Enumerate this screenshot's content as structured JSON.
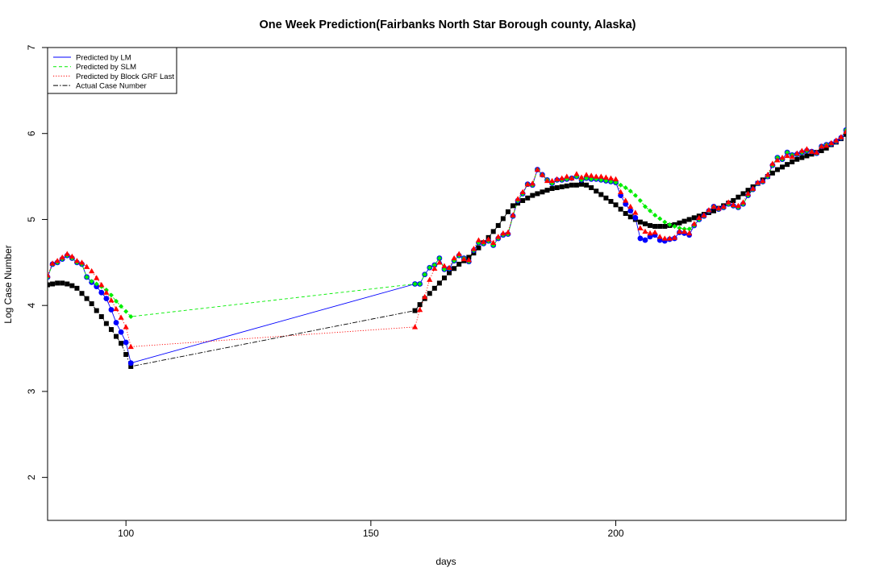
{
  "chart_data": {
    "type": "line",
    "title": "One Week Prediction(Fairbanks North Star Borough county, Alaska)",
    "xlabel": "days",
    "ylabel": "Log Case Number",
    "xlim": [
      84,
      247
    ],
    "ylim": [
      1.5,
      7
    ],
    "x_ticks": [
      "100",
      "150",
      "200"
    ],
    "y_ticks": [
      "2",
      "3",
      "4",
      "5",
      "6",
      "7"
    ],
    "grid": false,
    "legend_position": "top-left",
    "legend": [
      {
        "label": "Predicted by LM",
        "color": "#0000ff",
        "dash": "solid"
      },
      {
        "label": "Predicted by SLM",
        "color": "#00ee00",
        "dash": "dashed"
      },
      {
        "label": "Predicted by Block GRF Last",
        "color": "#ff0000",
        "dash": "dotted"
      },
      {
        "label": "Actual Case Number",
        "color": "#000000",
        "dash": "dashdot"
      }
    ],
    "series": [
      {
        "name": "Actual Case Number",
        "color": "#000000",
        "marker": "square",
        "x": [
          84,
          85,
          86,
          87,
          88,
          89,
          90,
          91,
          92,
          93,
          94,
          95,
          96,
          97,
          98,
          99,
          100,
          101,
          159,
          160,
          161,
          162,
          163,
          164,
          165,
          166,
          167,
          168,
          169,
          170,
          171,
          172,
          173,
          174,
          175,
          176,
          177,
          178,
          179,
          180,
          181,
          182,
          183,
          184,
          185,
          186,
          187,
          188,
          189,
          190,
          191,
          192,
          193,
          194,
          195,
          196,
          197,
          198,
          199,
          200,
          201,
          202,
          203,
          204,
          205,
          206,
          207,
          208,
          209,
          210,
          211,
          212,
          213,
          214,
          215,
          216,
          217,
          218,
          219,
          220,
          221,
          222,
          223,
          224,
          225,
          226,
          227,
          228,
          229,
          230,
          231,
          232,
          233,
          234,
          235,
          236,
          237,
          238,
          239,
          240,
          241,
          242,
          243,
          244,
          245,
          246,
          247
        ],
        "y": [
          4.24,
          4.25,
          4.26,
          4.26,
          4.25,
          4.23,
          4.2,
          4.14,
          4.08,
          4.02,
          3.94,
          3.87,
          3.79,
          3.72,
          3.64,
          3.56,
          3.43,
          3.29,
          3.94,
          4.01,
          4.08,
          4.14,
          4.2,
          4.26,
          4.32,
          4.38,
          4.43,
          4.48,
          4.52,
          4.56,
          4.61,
          4.67,
          4.73,
          4.79,
          4.86,
          4.93,
          5.01,
          5.09,
          5.16,
          5.19,
          5.22,
          5.25,
          5.28,
          5.3,
          5.32,
          5.34,
          5.36,
          5.37,
          5.38,
          5.39,
          5.4,
          5.4,
          5.41,
          5.4,
          5.37,
          5.33,
          5.29,
          5.25,
          5.21,
          5.17,
          5.12,
          5.07,
          5.03,
          5.0,
          4.97,
          4.95,
          4.93,
          4.92,
          4.92,
          4.92,
          4.93,
          4.94,
          4.96,
          4.98,
          5.0,
          5.02,
          5.04,
          5.06,
          5.08,
          5.1,
          5.13,
          5.16,
          5.19,
          5.22,
          5.26,
          5.3,
          5.34,
          5.38,
          5.42,
          5.46,
          5.5,
          5.54,
          5.58,
          5.61,
          5.64,
          5.67,
          5.7,
          5.72,
          5.74,
          5.76,
          5.78,
          5.8,
          5.83,
          5.87,
          5.9,
          5.94,
          5.99
        ]
      },
      {
        "name": "Predicted by LM",
        "color": "#0000ff",
        "marker": "circle",
        "x": [
          84,
          85,
          86,
          87,
          88,
          89,
          90,
          91,
          92,
          93,
          94,
          95,
          96,
          97,
          98,
          99,
          100,
          101,
          159,
          160,
          161,
          162,
          163,
          164,
          165,
          166,
          167,
          168,
          169,
          170,
          171,
          172,
          173,
          174,
          175,
          176,
          177,
          178,
          179,
          180,
          181,
          182,
          183,
          184,
          185,
          186,
          187,
          188,
          189,
          190,
          191,
          192,
          193,
          194,
          195,
          196,
          197,
          198,
          199,
          200,
          201,
          202,
          203,
          204,
          205,
          206,
          207,
          208,
          209,
          210,
          211,
          212,
          213,
          214,
          215,
          216,
          217,
          218,
          219,
          220,
          221,
          222,
          223,
          224,
          225,
          226,
          227,
          228,
          229,
          230,
          231,
          232,
          233,
          234,
          235,
          236,
          237,
          238,
          239,
          240,
          241,
          242,
          243,
          244,
          245,
          246,
          247
        ],
        "y": [
          4.33,
          4.48,
          4.5,
          4.54,
          4.58,
          4.55,
          4.5,
          4.48,
          4.33,
          4.27,
          4.22,
          4.15,
          4.08,
          3.95,
          3.8,
          3.69,
          3.57,
          3.33,
          4.25,
          4.25,
          4.36,
          4.44,
          4.47,
          4.55,
          4.42,
          4.43,
          4.52,
          4.58,
          4.55,
          4.51,
          4.64,
          4.73,
          4.72,
          4.75,
          4.7,
          4.78,
          4.82,
          4.83,
          5.04,
          5.22,
          5.3,
          5.41,
          5.4,
          5.58,
          5.52,
          5.46,
          5.42,
          5.46,
          5.46,
          5.47,
          5.48,
          5.5,
          5.46,
          5.48,
          5.47,
          5.47,
          5.46,
          5.45,
          5.44,
          5.43,
          5.28,
          5.18,
          5.1,
          5.02,
          4.78,
          4.76,
          4.8,
          4.82,
          4.76,
          4.75,
          4.77,
          4.78,
          4.85,
          4.84,
          4.82,
          4.93,
          5.0,
          5.04,
          5.1,
          5.15,
          5.12,
          5.14,
          5.18,
          5.16,
          5.14,
          5.18,
          5.28,
          5.35,
          5.42,
          5.44,
          5.5,
          5.63,
          5.72,
          5.7,
          5.78,
          5.75,
          5.76,
          5.78,
          5.8,
          5.79,
          5.77,
          5.85,
          5.87,
          5.88,
          5.91,
          5.95,
          6.04
        ]
      },
      {
        "name": "Predicted by SLM",
        "color": "#00ee00",
        "marker": "diamond",
        "x": [
          84,
          85,
          86,
          87,
          88,
          89,
          90,
          91,
          92,
          93,
          94,
          95,
          96,
          97,
          98,
          99,
          100,
          101,
          159,
          160,
          161,
          162,
          163,
          164,
          165,
          166,
          167,
          168,
          169,
          170,
          171,
          172,
          173,
          174,
          175,
          176,
          177,
          178,
          179,
          180,
          181,
          182,
          183,
          184,
          185,
          186,
          187,
          188,
          189,
          190,
          191,
          192,
          193,
          194,
          195,
          196,
          197,
          198,
          199,
          200,
          201,
          202,
          203,
          204,
          205,
          206,
          207,
          208,
          209,
          210,
          211,
          212,
          213,
          214,
          215,
          216,
          217,
          218,
          219,
          220,
          221,
          222,
          223,
          224,
          225,
          226,
          227,
          228,
          229,
          230,
          231,
          232,
          233,
          234,
          235,
          236,
          237,
          238,
          239,
          240,
          241,
          242,
          243,
          244,
          245,
          246,
          247
        ],
        "y": [
          4.33,
          4.48,
          4.5,
          4.54,
          4.58,
          4.55,
          4.5,
          4.48,
          4.33,
          4.28,
          4.25,
          4.22,
          4.18,
          4.12,
          4.05,
          3.99,
          3.93,
          3.87,
          4.25,
          4.25,
          4.36,
          4.44,
          4.47,
          4.55,
          4.42,
          4.43,
          4.52,
          4.58,
          4.55,
          4.51,
          4.64,
          4.73,
          4.72,
          4.75,
          4.7,
          4.78,
          4.82,
          4.83,
          5.04,
          5.22,
          5.3,
          5.41,
          5.4,
          5.58,
          5.52,
          5.46,
          5.42,
          5.46,
          5.46,
          5.47,
          5.48,
          5.5,
          5.46,
          5.48,
          5.47,
          5.47,
          5.46,
          5.45,
          5.44,
          5.43,
          5.4,
          5.37,
          5.33,
          5.28,
          5.22,
          5.15,
          5.1,
          5.05,
          5.01,
          4.97,
          4.94,
          4.92,
          4.9,
          4.89,
          4.89,
          4.93,
          5.0,
          5.04,
          5.1,
          5.15,
          5.12,
          5.14,
          5.18,
          5.16,
          5.14,
          5.18,
          5.28,
          5.35,
          5.42,
          5.44,
          5.5,
          5.63,
          5.72,
          5.7,
          5.78,
          5.75,
          5.76,
          5.78,
          5.8,
          5.79,
          5.77,
          5.85,
          5.87,
          5.88,
          5.91,
          5.95,
          6.04
        ]
      },
      {
        "name": "Predicted by Block GRF Last",
        "color": "#ff0000",
        "marker": "triangle",
        "x": [
          84,
          85,
          86,
          87,
          88,
          89,
          90,
          91,
          92,
          93,
          94,
          95,
          96,
          97,
          98,
          99,
          100,
          101,
          159,
          160,
          161,
          162,
          163,
          164,
          165,
          166,
          167,
          168,
          169,
          170,
          171,
          172,
          173,
          174,
          175,
          176,
          177,
          178,
          179,
          180,
          181,
          182,
          183,
          184,
          185,
          186,
          187,
          188,
          189,
          190,
          191,
          192,
          193,
          194,
          195,
          196,
          197,
          198,
          199,
          200,
          201,
          202,
          203,
          204,
          205,
          206,
          207,
          208,
          209,
          210,
          211,
          212,
          213,
          214,
          215,
          216,
          217,
          218,
          219,
          220,
          221,
          222,
          223,
          224,
          225,
          226,
          227,
          228,
          229,
          230,
          231,
          232,
          233,
          234,
          235,
          236,
          237,
          238,
          239,
          240,
          241,
          242,
          243,
          244,
          245,
          246,
          247
        ],
        "y": [
          4.35,
          4.49,
          4.52,
          4.56,
          4.6,
          4.57,
          4.52,
          4.5,
          4.45,
          4.4,
          4.32,
          4.24,
          4.15,
          4.06,
          3.96,
          3.86,
          3.75,
          3.52,
          3.75,
          3.95,
          4.1,
          4.3,
          4.43,
          4.5,
          4.46,
          4.44,
          4.55,
          4.6,
          4.54,
          4.53,
          4.66,
          4.76,
          4.74,
          4.77,
          4.73,
          4.8,
          4.84,
          4.85,
          5.05,
          5.24,
          5.32,
          5.41,
          5.42,
          5.58,
          5.52,
          5.45,
          5.45,
          5.47,
          5.48,
          5.5,
          5.48,
          5.53,
          5.49,
          5.52,
          5.51,
          5.5,
          5.5,
          5.49,
          5.48,
          5.47,
          5.32,
          5.22,
          5.15,
          5.08,
          4.9,
          4.86,
          4.84,
          4.85,
          4.8,
          4.78,
          4.78,
          4.79,
          4.86,
          4.86,
          4.84,
          4.95,
          5.02,
          5.05,
          5.11,
          5.15,
          5.13,
          5.15,
          5.2,
          5.17,
          5.16,
          5.2,
          5.3,
          5.36,
          5.43,
          5.45,
          5.52,
          5.65,
          5.69,
          5.72,
          5.74,
          5.73,
          5.77,
          5.8,
          5.82,
          5.79,
          5.78,
          5.85,
          5.86,
          5.89,
          5.92,
          5.96,
          6.02
        ]
      }
    ]
  }
}
